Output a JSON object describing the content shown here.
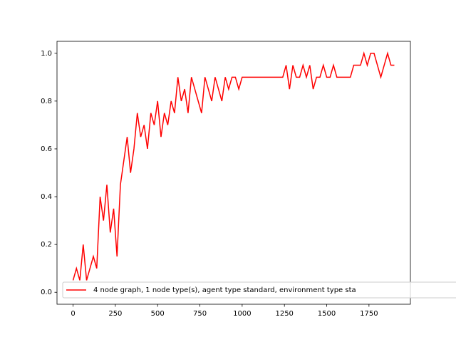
{
  "chart_data": {
    "type": "line",
    "x": [
      0,
      20,
      40,
      60,
      80,
      100,
      120,
      140,
      160,
      180,
      200,
      220,
      240,
      260,
      280,
      300,
      320,
      340,
      360,
      380,
      400,
      420,
      440,
      460,
      480,
      500,
      520,
      540,
      560,
      580,
      600,
      620,
      640,
      660,
      680,
      700,
      720,
      740,
      760,
      780,
      800,
      820,
      840,
      860,
      880,
      900,
      920,
      940,
      960,
      980,
      1000,
      1020,
      1040,
      1060,
      1080,
      1100,
      1120,
      1140,
      1160,
      1180,
      1200,
      1220,
      1240,
      1260,
      1280,
      1300,
      1320,
      1340,
      1360,
      1380,
      1400,
      1420,
      1440,
      1460,
      1480,
      1500,
      1520,
      1540,
      1560,
      1580,
      1600,
      1620,
      1640,
      1660,
      1680,
      1700,
      1720,
      1740,
      1760,
      1780,
      1800,
      1820,
      1840,
      1860,
      1880,
      1900
    ],
    "series": [
      {
        "name": "4 node graph, 1 node type(s), agent type standard, environment type sta",
        "color": "#ff0000",
        "values": [
          0.05,
          0.1,
          0.05,
          0.2,
          0.05,
          0.1,
          0.15,
          0.1,
          0.4,
          0.3,
          0.45,
          0.25,
          0.35,
          0.15,
          0.45,
          0.55,
          0.65,
          0.5,
          0.6,
          0.75,
          0.65,
          0.7,
          0.6,
          0.75,
          0.7,
          0.8,
          0.65,
          0.75,
          0.7,
          0.8,
          0.75,
          0.9,
          0.8,
          0.85,
          0.75,
          0.9,
          0.85,
          0.8,
          0.75,
          0.9,
          0.85,
          0.8,
          0.9,
          0.85,
          0.8,
          0.9,
          0.85,
          0.9,
          0.9,
          0.85,
          0.9,
          0.9,
          0.9,
          0.9,
          0.9,
          0.9,
          0.9,
          0.9,
          0.9,
          0.9,
          0.9,
          0.9,
          0.9,
          0.95,
          0.85,
          0.95,
          0.9,
          0.9,
          0.95,
          0.9,
          0.95,
          0.85,
          0.9,
          0.9,
          0.95,
          0.9,
          0.9,
          0.95,
          0.9,
          0.9,
          0.9,
          0.9,
          0.9,
          0.95,
          0.95,
          0.95,
          1.0,
          0.95,
          1.0,
          1.0,
          0.95,
          0.9,
          0.95,
          1.0,
          0.95,
          0.95
        ]
      }
    ],
    "xlim": [
      -95,
      1995
    ],
    "xticks": [
      0,
      250,
      500,
      750,
      1000,
      1250,
      1500,
      1750
    ],
    "ylim": [
      -0.05,
      1.05
    ],
    "yticks": [
      {
        "value": 0,
        "label": "0.0"
      },
      0.2,
      0.4,
      0.6,
      0.8,
      {
        "value": 1,
        "label": "1.0"
      }
    ],
    "legend": "lower left"
  }
}
